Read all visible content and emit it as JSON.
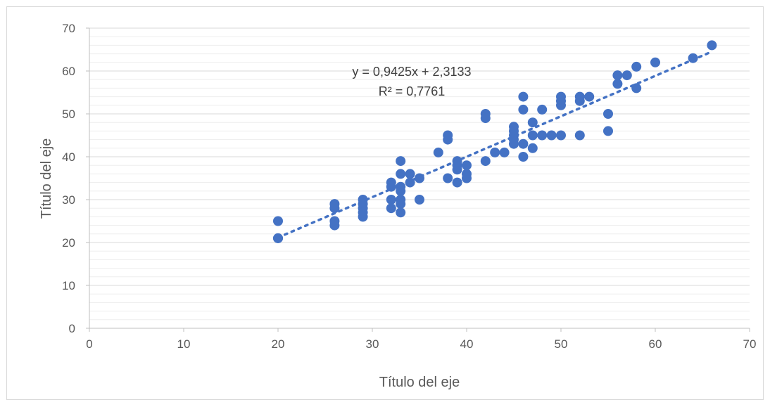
{
  "chart_data": {
    "type": "scatter",
    "title": "",
    "xlabel": "Título del eje",
    "ylabel": "Título del eje",
    "xlim": [
      0,
      70
    ],
    "ylim": [
      0,
      70
    ],
    "x_ticks": [
      0,
      10,
      20,
      30,
      40,
      50,
      60,
      70
    ],
    "y_ticks": [
      0,
      10,
      20,
      30,
      40,
      50,
      60,
      70
    ],
    "grid": "major-and-minor-horizontal",
    "legend": "none",
    "colors": {
      "points": "#4472c4",
      "trendline": "#4472c4",
      "grid_major": "#d9d9d9",
      "grid_minor": "#ededed",
      "text": "#595959"
    },
    "series": [
      {
        "points": [
          [
            20,
            25
          ],
          [
            20,
            21
          ],
          [
            20,
            21
          ],
          [
            26,
            29
          ],
          [
            26,
            28
          ],
          [
            26,
            25
          ],
          [
            26,
            24
          ],
          [
            29,
            30
          ],
          [
            29,
            29
          ],
          [
            29,
            28
          ],
          [
            29,
            27
          ],
          [
            29,
            26
          ],
          [
            32,
            34
          ],
          [
            32,
            33
          ],
          [
            32,
            30
          ],
          [
            32,
            28
          ],
          [
            33,
            39
          ],
          [
            33,
            36
          ],
          [
            33,
            33
          ],
          [
            33,
            32
          ],
          [
            33,
            30
          ],
          [
            33,
            29
          ],
          [
            33,
            27
          ],
          [
            34,
            36
          ],
          [
            34,
            34
          ],
          [
            35,
            35
          ],
          [
            35,
            30
          ],
          [
            37,
            41
          ],
          [
            38,
            45
          ],
          [
            38,
            44
          ],
          [
            38,
            35
          ],
          [
            39,
            39
          ],
          [
            39,
            38
          ],
          [
            39,
            37
          ],
          [
            39,
            34
          ],
          [
            40,
            38
          ],
          [
            40,
            36
          ],
          [
            40,
            35
          ],
          [
            42,
            50
          ],
          [
            42,
            49
          ],
          [
            42,
            39
          ],
          [
            43,
            41
          ],
          [
            44,
            41
          ],
          [
            45,
            47
          ],
          [
            45,
            46
          ],
          [
            45,
            45
          ],
          [
            45,
            44
          ],
          [
            45,
            43
          ],
          [
            46,
            54
          ],
          [
            46,
            51
          ],
          [
            46,
            43
          ],
          [
            46,
            40
          ],
          [
            47,
            48
          ],
          [
            47,
            45
          ],
          [
            47,
            42
          ],
          [
            48,
            51
          ],
          [
            48,
            45
          ],
          [
            49,
            45
          ],
          [
            50,
            54
          ],
          [
            50,
            53
          ],
          [
            50,
            52
          ],
          [
            50,
            45
          ],
          [
            52,
            54
          ],
          [
            52,
            53
          ],
          [
            52,
            45
          ],
          [
            53,
            54
          ],
          [
            55,
            50
          ],
          [
            55,
            46
          ],
          [
            56,
            59
          ],
          [
            56,
            57
          ],
          [
            57,
            59
          ],
          [
            58,
            61
          ],
          [
            58,
            56
          ],
          [
            60,
            62
          ],
          [
            64,
            63
          ],
          [
            66,
            66
          ]
        ]
      }
    ],
    "trendline": {
      "type": "linear",
      "slope": 0.9425,
      "intercept": 2.3133,
      "x_range": [
        20,
        66
      ],
      "style": "dotted",
      "equation_label": "y = 0,9425x + 2,3133",
      "r2_label": "R² = 0,7761"
    }
  }
}
